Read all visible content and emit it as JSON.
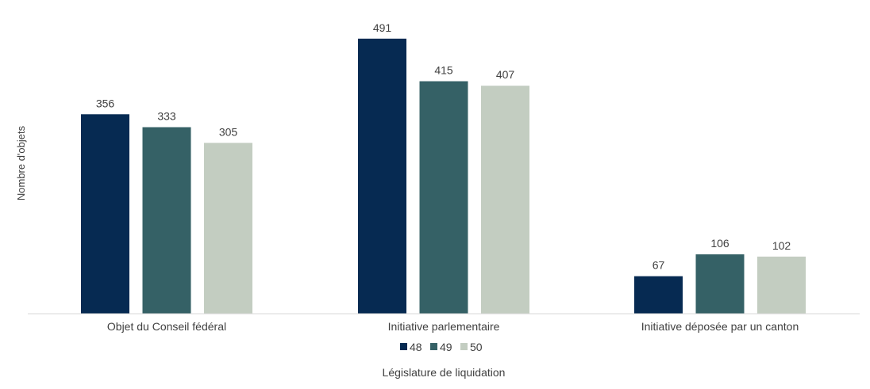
{
  "chart_data": {
    "type": "bar",
    "title": "",
    "ylabel": "Nombre d'objets",
    "xlabel": "Législature de liquidation",
    "categories": [
      "Objet du Conseil fédéral",
      "Initiative parlementaire",
      "Initiative déposée par un canton"
    ],
    "series": [
      {
        "name": "48",
        "color": "#062a52",
        "values": [
          356,
          491,
          67
        ]
      },
      {
        "name": "49",
        "color": "#356166",
        "values": [
          333,
          415,
          106
        ]
      },
      {
        "name": "50",
        "color": "#c3cdc1",
        "values": [
          305,
          407,
          102
        ]
      }
    ],
    "ylim": [
      0,
      560
    ],
    "grid": false,
    "legend": "bottom",
    "show_data_labels": true
  }
}
